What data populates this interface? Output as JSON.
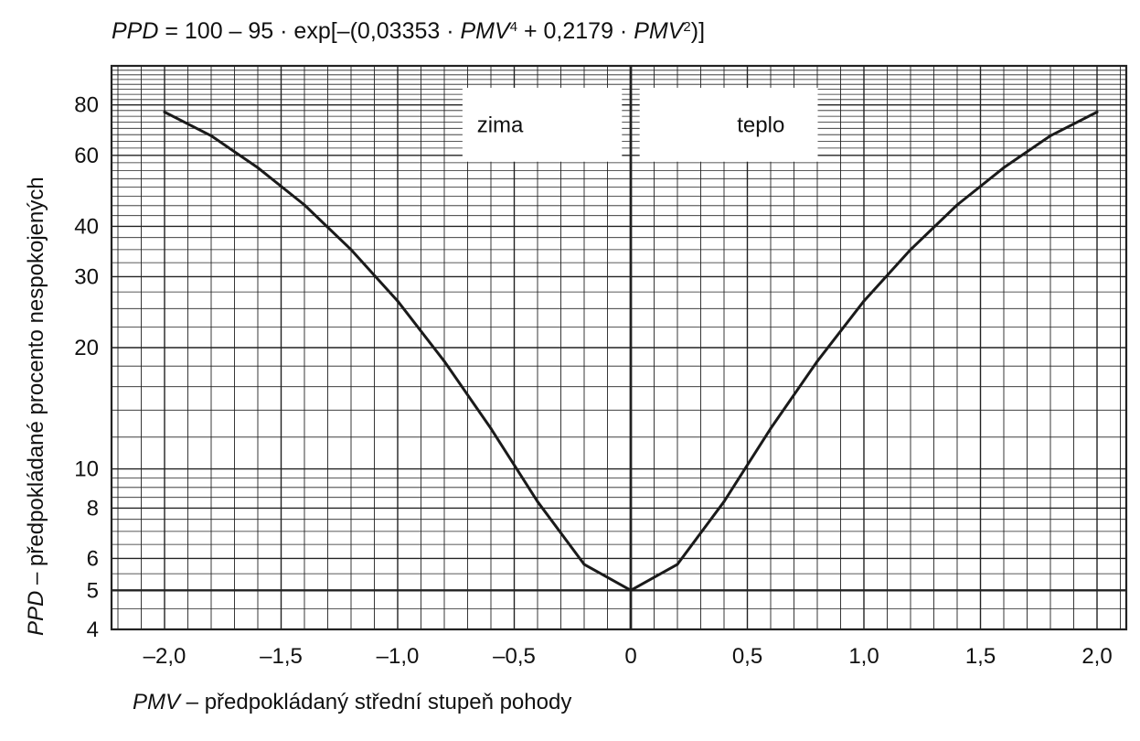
{
  "chart_data": {
    "type": "line",
    "title": {
      "parts": [
        {
          "text": "PPD",
          "italic": true,
          "sup": false
        },
        {
          "text": " = 100 – 95 · exp[–(0,03353 · ",
          "italic": false,
          "sup": false
        },
        {
          "text": "PMV",
          "italic": true,
          "sup": false
        },
        {
          "text": "4",
          "italic": false,
          "sup": true
        },
        {
          "text": " + 0,2179 · ",
          "italic": false,
          "sup": false
        },
        {
          "text": "PMV",
          "italic": true,
          "sup": false
        },
        {
          "text": "2",
          "italic": false,
          "sup": true
        },
        {
          "text": ")]",
          "italic": false,
          "sup": false
        }
      ]
    },
    "xlabel": {
      "symbol": "PMV",
      "text": " – předpokládaný střední stupeň pohody"
    },
    "ylabel": {
      "symbol": "PPD",
      "text": " – předpokládané procento nespokojených"
    },
    "x_axis": {
      "scale": "linear",
      "range": [
        -2.2,
        2.2
      ],
      "ticks": [
        -2.0,
        -1.5,
        -1.0,
        -0.5,
        0,
        0.5,
        1.0,
        1.5,
        2.0
      ],
      "tick_labels": [
        "–2,0",
        "–1,5",
        "–1,0",
        "–0,5",
        "0",
        "0,5",
        "1,0",
        "1,5",
        "2,0"
      ]
    },
    "y_axis": {
      "scale": "log",
      "range": [
        4,
        100
      ],
      "ticks": [
        4,
        5,
        6,
        8,
        10,
        20,
        30,
        40,
        60,
        80
      ],
      "tick_labels": [
        "4",
        "5",
        "6",
        "8",
        "10",
        "20",
        "30",
        "40",
        "60",
        "80"
      ]
    },
    "grid": true,
    "region_labels": [
      "zima",
      "teplo"
    ],
    "series": [
      {
        "x": [
          -2.0,
          -1.8,
          -1.6,
          -1.4,
          -1.2,
          -1.0,
          -0.8,
          -0.6,
          -0.4,
          -0.2,
          0,
          0.2,
          0.4,
          0.6,
          0.8,
          1.0,
          1.2,
          1.4,
          1.6,
          1.8,
          2.0
        ],
        "y": [
          76.8,
          67.1,
          55.9,
          45.2,
          35.0,
          26.1,
          18.5,
          12.6,
          8.3,
          5.8,
          5.0,
          5.8,
          8.3,
          12.6,
          18.5,
          26.1,
          35.0,
          45.2,
          55.9,
          67.1,
          76.8
        ]
      }
    ],
    "colors": {
      "line": "#1a1a1a",
      "grid": "#222222",
      "background": "#ffffff"
    }
  }
}
